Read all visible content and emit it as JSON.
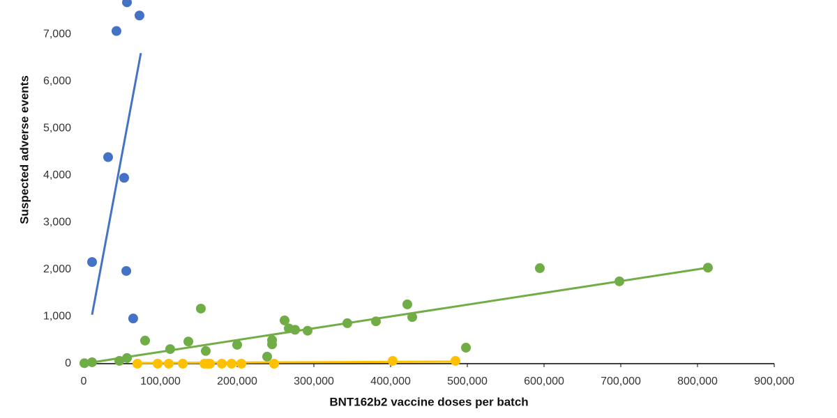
{
  "chart_data": {
    "type": "scatter",
    "xlabel": "BNT162b2 vaccine doses per batch",
    "ylabel": "Suspected adverse events",
    "xlim": [
      0,
      900000
    ],
    "ylim": [
      0,
      7700
    ],
    "xticks": [
      {
        "value": 0,
        "label": "0"
      },
      {
        "value": 100000,
        "label": "100,000"
      },
      {
        "value": 200000,
        "label": "200,000"
      },
      {
        "value": 300000,
        "label": "300,000"
      },
      {
        "value": 400000,
        "label": "400,000"
      },
      {
        "value": 500000,
        "label": "500,000"
      },
      {
        "value": 600000,
        "label": "600,000"
      },
      {
        "value": 700000,
        "label": "700,000"
      },
      {
        "value": 800000,
        "label": "800,000"
      },
      {
        "value": 900000,
        "label": "900,000"
      }
    ],
    "yticks": [
      0,
      {
        "value": 1000,
        "label": "1,000"
      },
      {
        "value": 2000,
        "label": "2,000"
      },
      {
        "value": 3000,
        "label": "3,000"
      },
      {
        "value": 4000,
        "label": "4,000"
      },
      {
        "value": 5000,
        "label": "5,000"
      },
      {
        "value": 6000,
        "label": "6,000"
      },
      {
        "value": 7000,
        "label": "7,000"
      }
    ],
    "series": [
      {
        "color": "#4472c4",
        "x": [
          10900,
          31800,
          42700,
          52700,
          55500,
          56400,
          64500,
          72700
        ],
        "values": [
          2160,
          4390,
          7070,
          3950,
          1970,
          7680,
          960,
          7400
        ],
        "trendline": {
          "x": [
            10900,
            74500
          ],
          "values": [
            1040,
            6600
          ]
        }
      },
      {
        "color": "#70ad47",
        "x": [
          900,
          10900,
          46400,
          56400,
          80000,
          112700,
          136400,
          152700,
          159100,
          200000,
          239100,
          245500,
          245500,
          261800,
          267300,
          275500,
          291800,
          343600,
          380900,
          421800,
          428200,
          498200,
          594500,
          698200,
          813600
        ],
        "values": [
          10,
          30,
          60,
          120,
          490,
          310,
          470,
          1170,
          270,
          400,
          150,
          500,
          410,
          920,
          750,
          720,
          700,
          860,
          900,
          1260,
          990,
          340,
          2030,
          1750,
          2040
        ],
        "trendline": {
          "x": [
            0,
            813600
          ],
          "values": [
            0,
            2040
          ]
        }
      },
      {
        "color": "#ffc000",
        "x": [
          70000,
          96400,
          110900,
          129100,
          157300,
          161800,
          164500,
          180000,
          192700,
          205500,
          248200,
          402700,
          484500
        ],
        "values": [
          0,
          0,
          0,
          0,
          0,
          0,
          0,
          0,
          0,
          0,
          0,
          60,
          60
        ],
        "trendline": {
          "x": [
            70000,
            484500
          ],
          "values": [
            15,
            45
          ]
        }
      }
    ]
  }
}
